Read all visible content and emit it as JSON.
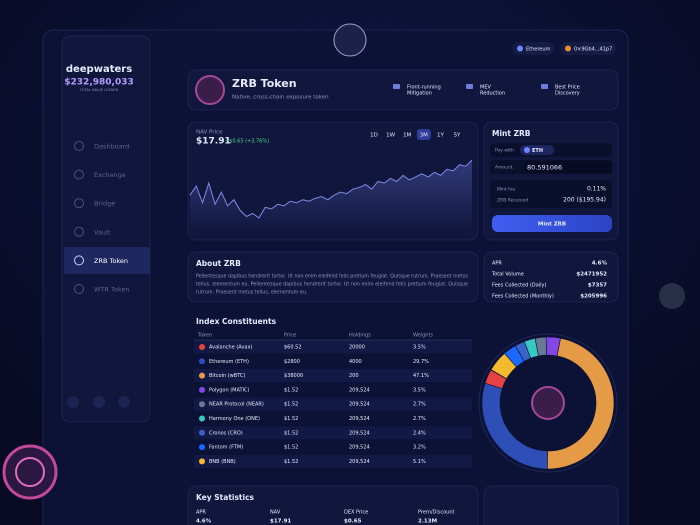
{
  "sidebar": {
    "brand": "deepwaters",
    "tvl": "$232,980,033",
    "tvl_label": "TOTAL VALUE LOCKED",
    "nav": [
      "Dashboard",
      "Exchange",
      "Bridge",
      "Vault",
      "ZRB Token",
      "WTR Token"
    ],
    "active": 4
  },
  "topbar": {
    "network": "Ethereum",
    "wallet": "0×9Gb4...41p7"
  },
  "token": {
    "name": "ZRB Token",
    "subtitle": "Native, cross-chain exposure token",
    "features": [
      [
        "Front-running",
        "Mitigation"
      ],
      [
        "MEV",
        "Reduction"
      ],
      [
        "Best Price",
        "Discovery"
      ]
    ]
  },
  "nav_chart": {
    "label": "NAV Price",
    "price": "$17.91",
    "change": "+$0.65 (+3.76%)",
    "ranges": [
      "1D",
      "1W",
      "1M",
      "3M",
      "1Y",
      "5Y"
    ],
    "active_range": 3,
    "color": "#7d8ae6",
    "values": [
      15.6,
      16.2,
      15.1,
      16.4,
      15.0,
      15.8,
      14.9,
      15.3,
      14.6,
      14.2,
      14.4,
      14.1,
      14.8,
      14.7,
      15.0,
      14.9,
      15.2,
      15.1,
      15.3,
      15.2,
      15.4,
      15.5,
      15.3,
      15.6,
      15.8,
      15.7,
      16.0,
      16.1,
      16.3,
      16.0,
      16.5,
      16.4,
      16.7,
      16.5,
      16.9,
      16.6,
      16.8,
      17.0,
      16.8,
      17.1,
      16.9,
      17.3,
      17.2,
      17.6,
      17.5,
      17.91
    ]
  },
  "mint": {
    "title": "Mint ZRB",
    "pay_label": "Pay with",
    "pay_token": "ETH",
    "amount_label": "Amount",
    "amount": "80.591066",
    "fee_label": "Mint fee",
    "fee": "0.11%",
    "received_label": "ZRB Received",
    "received": "200 ($195.94)",
    "button": "Mint ZRB"
  },
  "about": {
    "title": "About ZRB",
    "lines": [
      "Pellentesque dapibus hendrerit tortor. Ut non enim eleifend felis pretium feugiat. Quisque rutrum. Praesent metus",
      "tellus, elementum eu. Pellentesque dapibus hendrerit tortor. Ut non enim eleifend felis pretium feugiat. Quisque",
      "rutrum. Praesent metus tellus, elementum eu."
    ]
  },
  "stats": [
    {
      "label": "APR",
      "value": "4.6%"
    },
    {
      "label": "Total Volume",
      "value": "$2471952"
    },
    {
      "label": "Fees Collected (Daily)",
      "value": "$7357"
    },
    {
      "label": "Fees Collected (Monthly)",
      "value": "$205996"
    }
  ],
  "index": {
    "title": "Index Constituents",
    "headers": [
      "Token",
      "Price",
      "Holdings",
      "Weights"
    ],
    "rows": [
      {
        "token": "Avalanche (Avax)",
        "price": "$60.52",
        "holdings": "20000",
        "weight": {
          "value": 3.5,
          "label": "3.5%"
        },
        "color": "#e84142"
      },
      {
        "token": "Ethereum (ETH)",
        "price": "$2800",
        "holdings": "4000",
        "weight": {
          "value": 29.7,
          "label": "29.7%"
        },
        "color": "#2f4fb8"
      },
      {
        "token": "Bitcoin (wBTC)",
        "price": "$38000",
        "holdings": "200",
        "weight": {
          "value": 47.1,
          "label": "47.1%"
        },
        "color": "#e59a45"
      },
      {
        "token": "Polygon (MATIC)",
        "price": "$1.52",
        "holdings": "209,524",
        "weight": {
          "value": 3.5,
          "label": "3.5%"
        },
        "color": "#8247e5"
      },
      {
        "token": "NEAR Protocol (NEAR)",
        "price": "$1.52",
        "holdings": "209,524",
        "weight": {
          "value": 2.7,
          "label": "2.7%"
        },
        "color": "#6b7894"
      },
      {
        "token": "Harmony One (ONE)",
        "price": "$1.52",
        "holdings": "209,524",
        "weight": {
          "value": 2.7,
          "label": "2.7%"
        },
        "color": "#36c9c0"
      },
      {
        "token": "Cronos (CRO)",
        "price": "$1.52",
        "holdings": "209,524",
        "weight": {
          "value": 2.4,
          "label": "2.4%"
        },
        "color": "#3a63c9"
      },
      {
        "token": "Fantom (FTM)",
        "price": "$1.52",
        "holdings": "209,524",
        "weight": {
          "value": 3.2,
          "label": "3.2%"
        },
        "color": "#1969ff"
      },
      {
        "token": "BNB (BNB)",
        "price": "$1.52",
        "holdings": "209,524",
        "weight": {
          "value": 5.1,
          "label": "5.1%"
        },
        "color": "#f3ba2f"
      }
    ]
  },
  "key_stats": {
    "title": "Key Statistics",
    "items": [
      {
        "label": "APR",
        "value": "4.6%"
      },
      {
        "label": "NAV",
        "value": "$17.91"
      },
      {
        "label": "DEX Price",
        "value": "$0.65"
      },
      {
        "label": "Prem/Discount",
        "value": "2.13M"
      }
    ]
  }
}
